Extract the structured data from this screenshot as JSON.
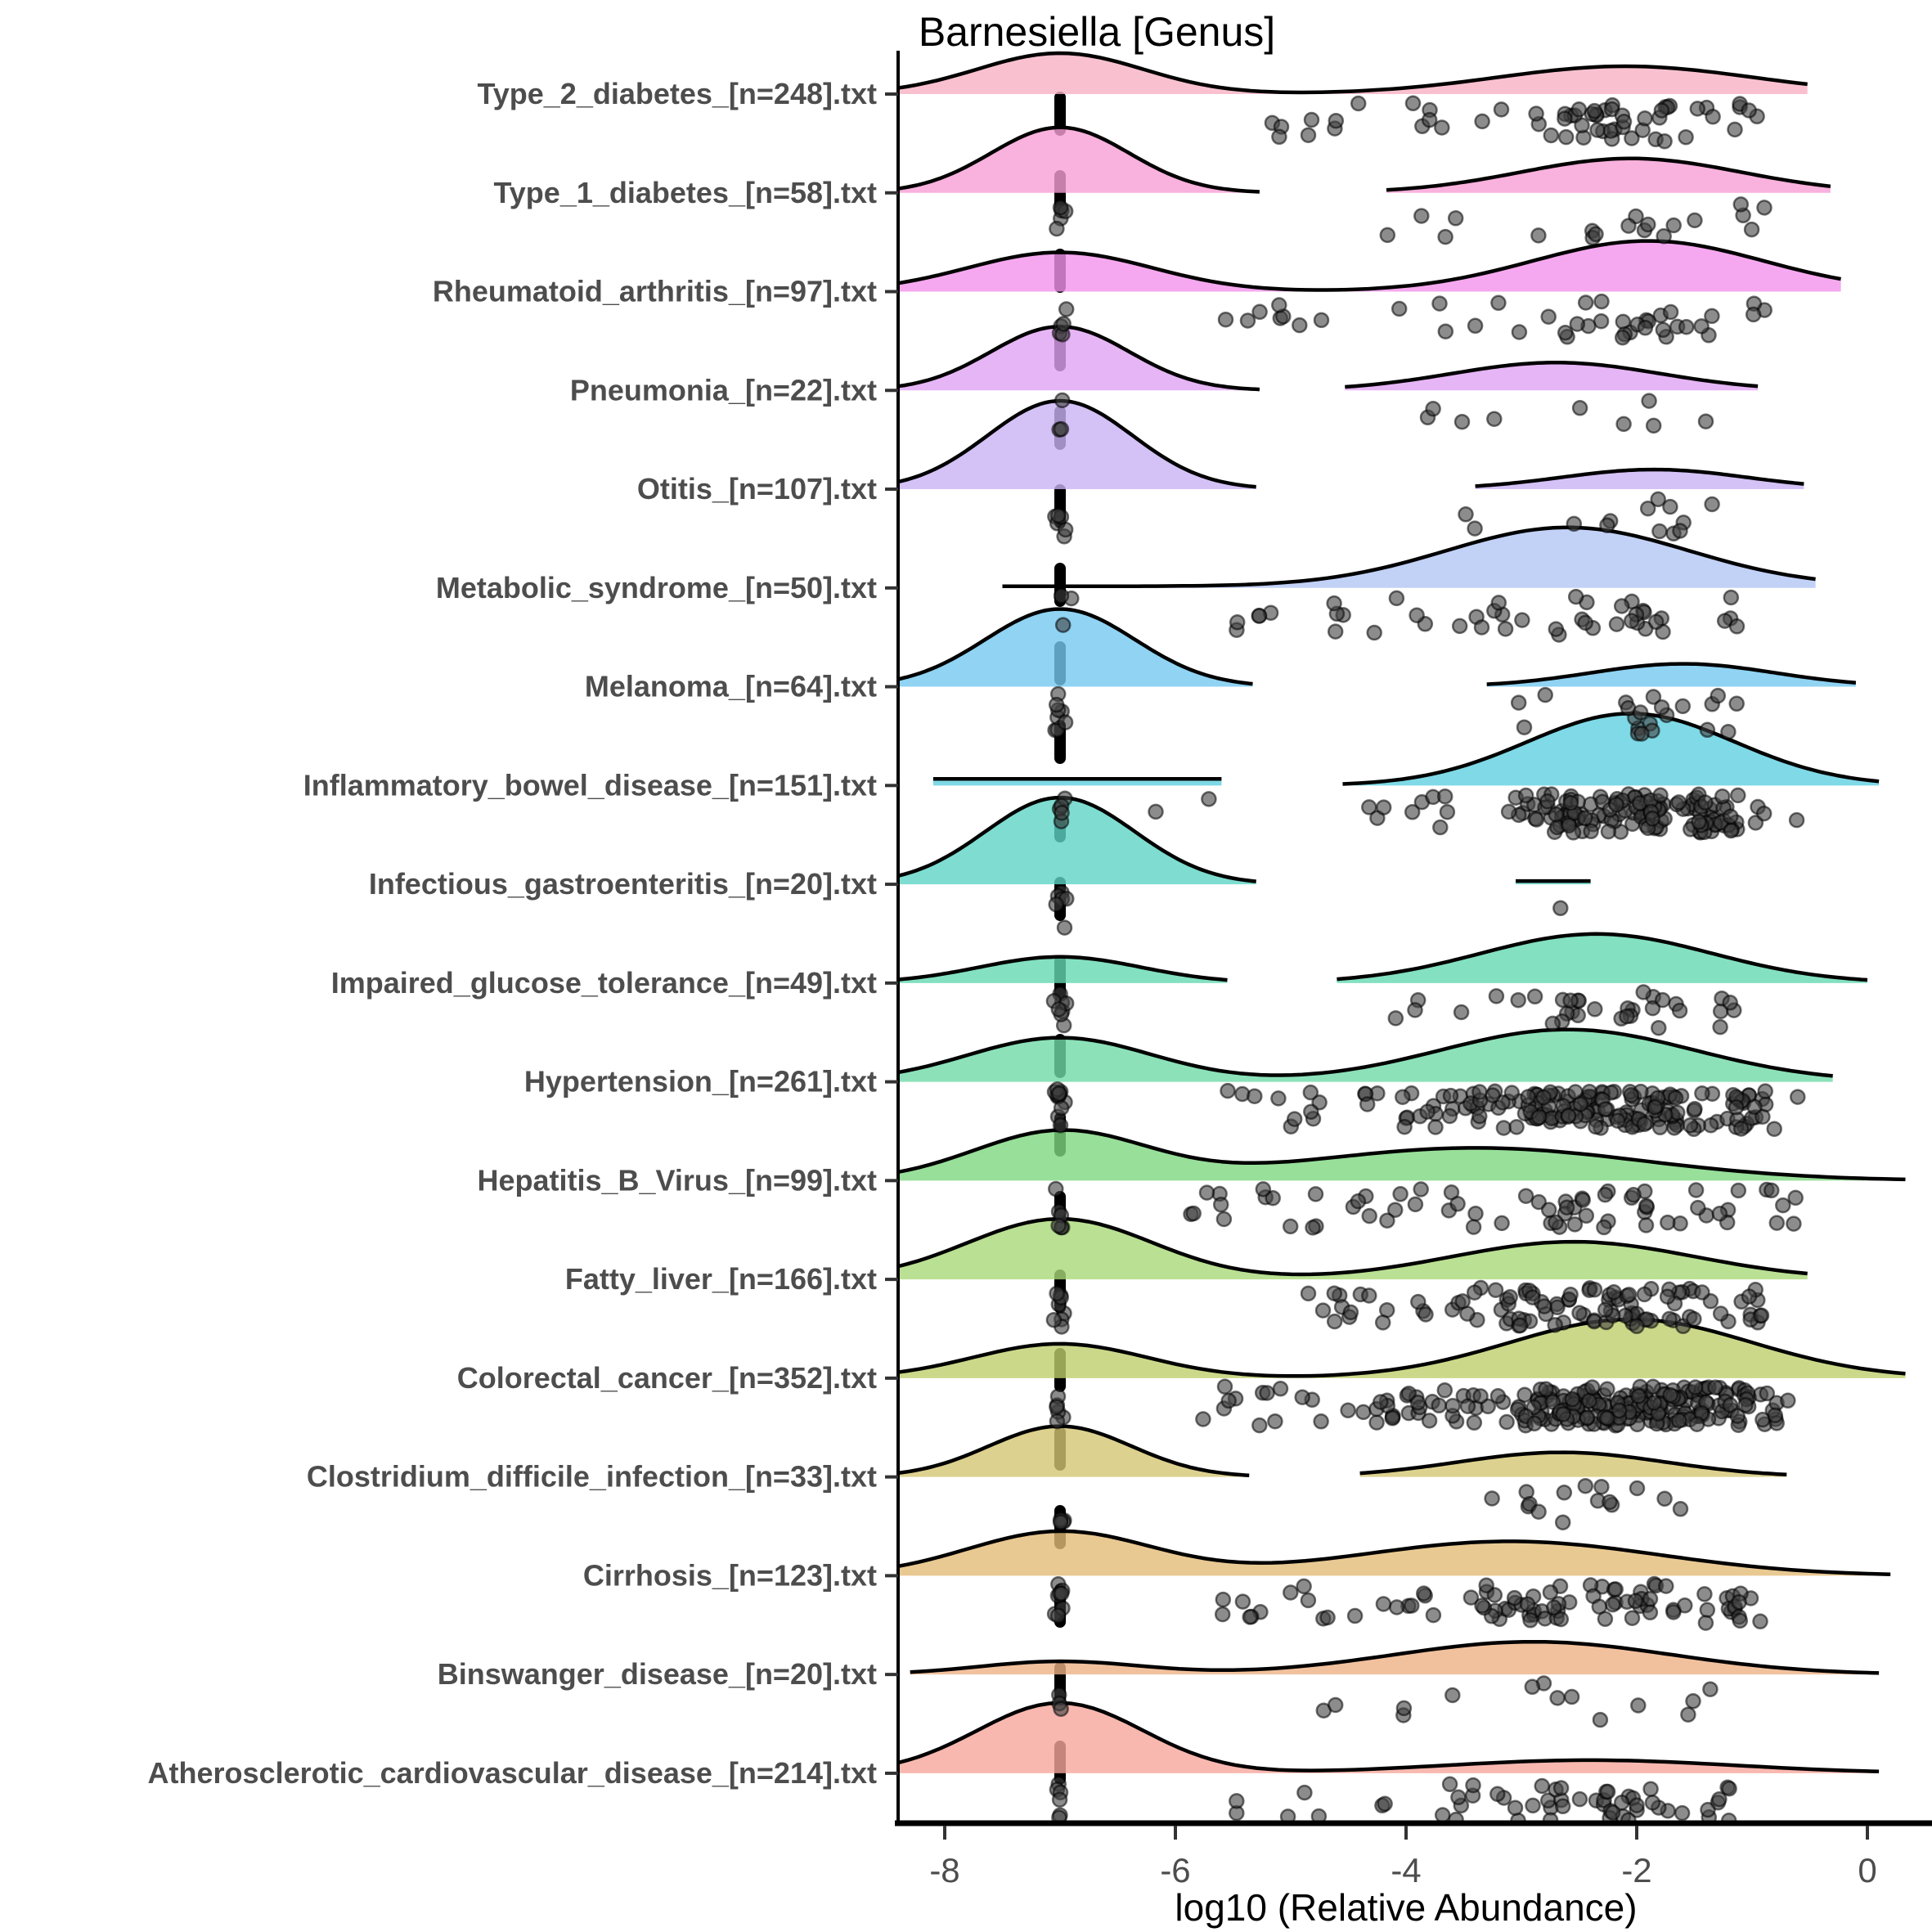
{
  "chart_data": {
    "type": "ridgeline",
    "title": "Barnesiella [Genus]",
    "xlabel": "log10 (Relative Abundance)",
    "x_ticks": [
      -8,
      -6,
      -4,
      -2,
      0
    ],
    "xlim": [
      -8.42,
      0.33
    ],
    "grid": false,
    "legend": "none",
    "dashed_line_x": -7,
    "point_style": {
      "fill": "#3f3f3f",
      "fill_opacity": 0.6,
      "stroke": "#000000",
      "radius": 8.5
    },
    "rows": [
      {
        "label": "Type_2_diabetes_[n=248].txt",
        "color": "#F8B1C3",
        "segments": [
          {
            "r": [
              -8.42,
              -0.52
            ],
            "base": 0,
            "g": [
              [
                -7,
                0.72,
                50
              ],
              [
                -2.1,
                1.1,
                34
              ]
            ]
          }
        ],
        "clusters": [
          [
            "u",
            -5.3,
            -4.5,
            6
          ],
          [
            "n",
            -3.7,
            0.35,
            10
          ],
          [
            "n",
            -2.0,
            0.5,
            40
          ],
          [
            "u",
            -1.2,
            -0.9,
            4
          ]
        ],
        "dl": 0
      },
      {
        "label": "Type_1_diabetes_[n=58].txt",
        "color": "#F79ED4",
        "segments": [
          {
            "r": [
              -8.42,
              -5.27
            ],
            "base": 0,
            "g": [
              [
                -7,
                0.6,
                80
              ]
            ]
          },
          {
            "r": [
              -4.17,
              -0.32
            ],
            "base": 0,
            "g": [
              [
                -2.05,
                0.95,
                42
              ]
            ]
          }
        ],
        "clusters": [
          [
            "u",
            -4.3,
            -3.4,
            4
          ],
          [
            "n",
            -2.1,
            0.55,
            12
          ],
          [
            "u",
            -1.1,
            -0.95,
            3
          ]
        ],
        "dl": 5
      },
      {
        "label": "Rheumatoid_arthritis_[n=97].txt",
        "color": "#F392EB",
        "segments": [
          {
            "r": [
              -8.42,
              -0.23
            ],
            "base": 0,
            "g": [
              [
                -7,
                0.8,
                48
              ],
              [
                -1.9,
                1.0,
                62
              ]
            ]
          }
        ],
        "clusters": [
          [
            "u",
            -5.8,
            -4.2,
            8
          ],
          [
            "n",
            -3.4,
            0.4,
            8
          ],
          [
            "n",
            -1.9,
            0.5,
            24
          ],
          [
            "u",
            -1.0,
            -0.9,
            2
          ]
        ],
        "dl": 5
      },
      {
        "label": "Pneumonia_[n=22].txt",
        "color": "#E0A2F2",
        "segments": [
          {
            "r": [
              -8.42,
              -5.27
            ],
            "base": 0,
            "g": [
              [
                -7,
                0.6,
                78
              ]
            ]
          },
          {
            "r": [
              -4.53,
              -0.95
            ],
            "base": 0,
            "g": [
              [
                -2.7,
                0.9,
                34
              ]
            ]
          }
        ],
        "clusters": [
          [
            "u",
            -4.1,
            -2.9,
            4
          ],
          [
            "n",
            -2.0,
            0.35,
            5
          ]
        ],
        "dl": 3
      },
      {
        "label": "Otitis_[n=107].txt",
        "color": "#C9B2F4",
        "segments": [
          {
            "r": [
              -8.42,
              -5.3
            ],
            "base": 0,
            "g": [
              [
                -7,
                0.63,
                108
              ]
            ]
          },
          {
            "r": [
              -3.4,
              -0.55
            ],
            "base": 0,
            "g": [
              [
                -1.85,
                0.8,
                24
              ]
            ]
          }
        ],
        "clusters": [
          [
            "u",
            -4.1,
            -3.3,
            2
          ],
          [
            "n",
            -1.8,
            0.4,
            11
          ]
        ],
        "dl": 6
      },
      {
        "label": "Metabolic_syndrome_[n=50].txt",
        "color": "#B3C6F4",
        "segments": [
          {
            "r": [
              -7.5,
              -0.45
            ],
            "base": 2,
            "g": [
              [
                -2.6,
                1.05,
                72
              ]
            ]
          }
        ],
        "clusters": [
          [
            "u",
            -5.5,
            -4.6,
            5
          ],
          [
            "n",
            -4.2,
            0.35,
            8
          ],
          [
            "n",
            -2.5,
            0.6,
            28
          ],
          [
            "u",
            -1.4,
            -1.1,
            3
          ]
        ],
        "dl": 3
      },
      {
        "label": "Melanoma_[n=64].txt",
        "color": "#74C8F0",
        "segments": [
          {
            "r": [
              -8.42,
              -5.33
            ],
            "base": 0,
            "g": [
              [
                -7,
                0.65,
                95
              ]
            ]
          },
          {
            "r": [
              -3.3,
              -0.1
            ],
            "base": 0,
            "g": [
              [
                -1.6,
                0.8,
                28
              ]
            ]
          }
        ],
        "clusters": [
          [
            "u",
            -3.3,
            -2.5,
            3
          ],
          [
            "n",
            -1.7,
            0.35,
            18
          ]
        ],
        "dl": 8
      },
      {
        "label": "Inflammatory_bowel_disease_[n=151].txt",
        "color": "#5FD0E0",
        "segments": [
          {
            "r": [
              -8.1,
              -5.6
            ],
            "base": 8,
            "g": []
          },
          {
            "r": [
              -4.55,
              0.1
            ],
            "base": 0,
            "g": [
              [
                -2.05,
                0.9,
                88
              ]
            ]
          }
        ],
        "clusters": [
          [
            "u",
            -6.2,
            -5.5,
            2
          ],
          [
            "u",
            -4.5,
            -3.6,
            8
          ],
          [
            "n",
            -2.2,
            0.55,
            120
          ],
          [
            "n",
            -1.4,
            0.3,
            20
          ]
        ],
        "dl": 5
      },
      {
        "label": "Infectious_gastroenteritis_[n=20].txt",
        "color": "#5ED4C4",
        "segments": [
          {
            "r": [
              -8.42,
              -5.3
            ],
            "base": 0,
            "g": [
              [
                -7,
                0.65,
                106
              ]
            ]
          },
          {
            "r": [
              -3.05,
              -2.4
            ],
            "base": 4,
            "g": []
          }
        ],
        "clusters": [
          [
            "u",
            -2.75,
            -2.65,
            1
          ]
        ],
        "dl": 6
      },
      {
        "label": "Impaired_glucose_tolerance_[n=49].txt",
        "color": "#64D8B0",
        "segments": [
          {
            "r": [
              -8.42,
              -5.55
            ],
            "base": 0,
            "g": [
              [
                -7,
                0.7,
                32
              ]
            ]
          },
          {
            "r": [
              -4.6,
              0.0
            ],
            "base": 0,
            "g": [
              [
                -2.35,
                1.0,
                60
              ]
            ]
          }
        ],
        "clusters": [
          [
            "u",
            -4.3,
            -3.5,
            4
          ],
          [
            "n",
            -2.2,
            0.5,
            26
          ],
          [
            "u",
            -1.3,
            -1.1,
            4
          ]
        ],
        "dl": 8
      },
      {
        "label": "Hypertension_[n=261].txt",
        "color": "#6FD9A8",
        "segments": [
          {
            "r": [
              -8.42,
              -0.3
            ],
            "base": 0,
            "g": [
              [
                -7,
                0.8,
                54
              ],
              [
                -2.6,
                1.1,
                64
              ]
            ]
          }
        ],
        "clusters": [
          [
            "u",
            -5.6,
            -4.6,
            10
          ],
          [
            "n",
            -3.9,
            0.4,
            20
          ],
          [
            "n",
            -2.4,
            0.65,
            150
          ],
          [
            "u",
            -1.2,
            -0.85,
            15
          ]
        ],
        "dl": 12
      },
      {
        "label": "Hepatitis_B_Virus_[n=99].txt",
        "color": "#7ED77F",
        "segments": [
          {
            "r": [
              -8.42,
              0.33
            ],
            "base": 0,
            "g": [
              [
                -7,
                0.75,
                60
              ],
              [
                -3.4,
                1.45,
                40
              ]
            ]
          }
        ],
        "clusters": [
          [
            "u",
            -5.9,
            -4.7,
            12
          ],
          [
            "n",
            -4.0,
            0.5,
            16
          ],
          [
            "n",
            -2.2,
            0.6,
            34
          ],
          [
            "u",
            -0.9,
            -0.6,
            6
          ]
        ],
        "dl": 6
      },
      {
        "label": "Fatty_liver_[n=166].txt",
        "color": "#A9D878",
        "segments": [
          {
            "r": [
              -8.42,
              -0.52
            ],
            "base": 0,
            "g": [
              [
                -7,
                0.8,
                74
              ],
              [
                -2.55,
                1.05,
                46
              ]
            ]
          }
        ],
        "clusters": [
          [
            "u",
            -4.9,
            -4.0,
            12
          ],
          [
            "n",
            -3.3,
            0.5,
            25
          ],
          [
            "n",
            -2.0,
            0.5,
            62
          ],
          [
            "u",
            -1.1,
            -0.9,
            6
          ]
        ],
        "dl": 8
      },
      {
        "label": "Colorectal_cancer_[n=352].txt",
        "color": "#BFCE6B",
        "segments": [
          {
            "r": [
              -8.42,
              0.33
            ],
            "base": 0,
            "g": [
              [
                -7,
                0.75,
                42
              ],
              [
                -2.05,
                1.05,
                72
              ]
            ]
          }
        ],
        "clusters": [
          [
            "u",
            -5.9,
            -4.8,
            12
          ],
          [
            "n",
            -4.0,
            0.5,
            30
          ],
          [
            "n",
            -2.1,
            0.6,
            180
          ],
          [
            "n",
            -1.3,
            0.25,
            28
          ]
        ],
        "dl": 6
      },
      {
        "label": "Clostridium_difficile_infection_[n=33].txt",
        "color": "#D5C573",
        "segments": [
          {
            "r": [
              -8.42,
              -5.36
            ],
            "base": 0,
            "g": [
              [
                -7,
                0.62,
                62
              ]
            ]
          },
          {
            "r": [
              -4.4,
              -0.7
            ],
            "base": 0,
            "g": [
              [
                -2.65,
                0.9,
                30
              ]
            ]
          }
        ],
        "clusters": [
          [
            "u",
            -3.4,
            -2.6,
            6
          ],
          [
            "n",
            -1.9,
            0.4,
            9
          ]
        ],
        "dl": 4
      },
      {
        "label": "Cirrhosis_[n=123].txt",
        "color": "#E3BB77",
        "segments": [
          {
            "r": [
              -8.42,
              0.2
            ],
            "base": 0,
            "g": [
              [
                -7,
                0.8,
                54
              ],
              [
                -3.1,
                1.3,
                42
              ]
            ]
          }
        ],
        "clusters": [
          [
            "u",
            -5.6,
            -4.6,
            10
          ],
          [
            "n",
            -3.7,
            0.5,
            22
          ],
          [
            "n",
            -2.2,
            0.55,
            48
          ],
          [
            "u",
            -1.2,
            -0.9,
            8
          ]
        ],
        "dl": 8
      },
      {
        "label": "Binswanger_disease_[n=20].txt",
        "color": "#EDB284",
        "segments": [
          {
            "r": [
              -8.3,
              0.1
            ],
            "base": 0,
            "g": [
              [
                -7,
                0.7,
                16
              ],
              [
                -2.9,
                1.2,
                40
              ]
            ]
          }
        ],
        "clusters": [
          [
            "u",
            -4.8,
            -3.9,
            4
          ],
          [
            "n",
            -2.7,
            0.5,
            7
          ],
          [
            "u",
            -1.6,
            -1.3,
            3
          ]
        ],
        "dl": 3
      },
      {
        "label": "Atherosclerotic_cardiovascular_disease_[n=214].txt",
        "color": "#F6A69C",
        "segments": [
          {
            "r": [
              -8.42,
              0.1
            ],
            "base": 0,
            "g": [
              [
                -7,
                0.72,
                86
              ],
              [
                -2.4,
                1.25,
                16
              ]
            ]
          }
        ],
        "clusters": [
          [
            "u",
            -5.6,
            -4.7,
            5
          ],
          [
            "n",
            -3.5,
            0.5,
            14
          ],
          [
            "n",
            -2.2,
            0.5,
            32
          ],
          [
            "u",
            -1.4,
            -1.2,
            4
          ]
        ],
        "dl": 6
      }
    ]
  }
}
